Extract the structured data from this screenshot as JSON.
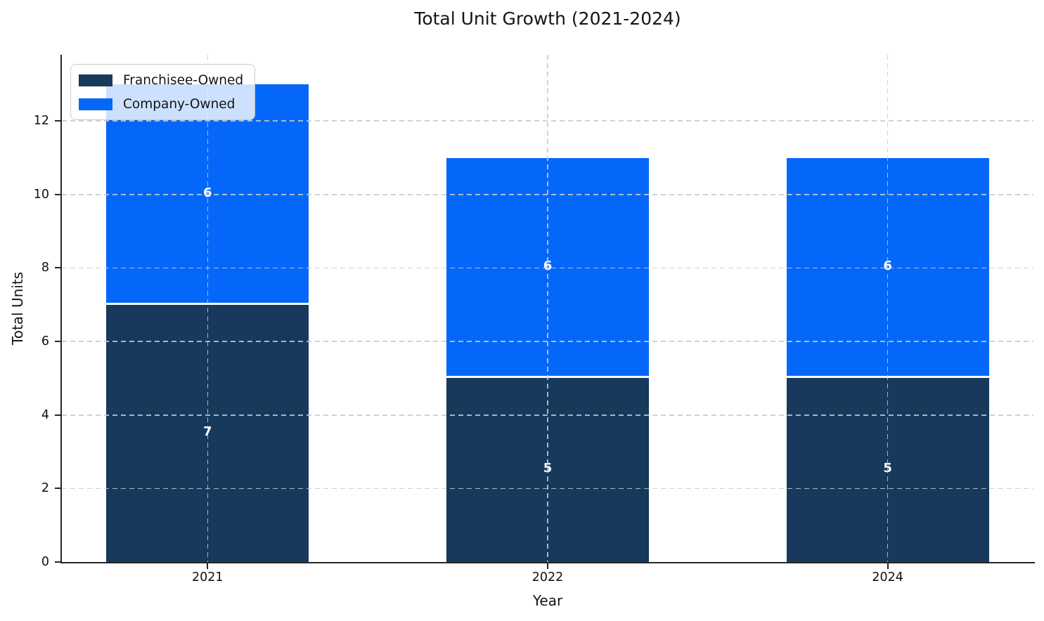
{
  "chart_data": {
    "type": "bar",
    "stacked": true,
    "title": "Total Unit Growth (2021-2024)",
    "xlabel": "Year",
    "ylabel": "Total Units",
    "categories": [
      "2021",
      "2022",
      "2024"
    ],
    "series": [
      {
        "name": "Franchisee-Owned",
        "values": [
          7,
          5,
          5
        ],
        "color": "#16395C"
      },
      {
        "name": "Company-Owned",
        "values": [
          6,
          6,
          6
        ],
        "color": "#0567FA"
      }
    ],
    "bar_value_labels": true,
    "value_label_color": "#ffffff",
    "segment_separator_color": "#ffffff",
    "ylim": [
      0,
      13.8
    ],
    "yticks": [
      0,
      2,
      4,
      6,
      8,
      10,
      12
    ],
    "grid": true,
    "grid_style": "dashed",
    "grid_color": "#c8cace",
    "axis_color": "#262626",
    "legend_position": "upper left"
  }
}
